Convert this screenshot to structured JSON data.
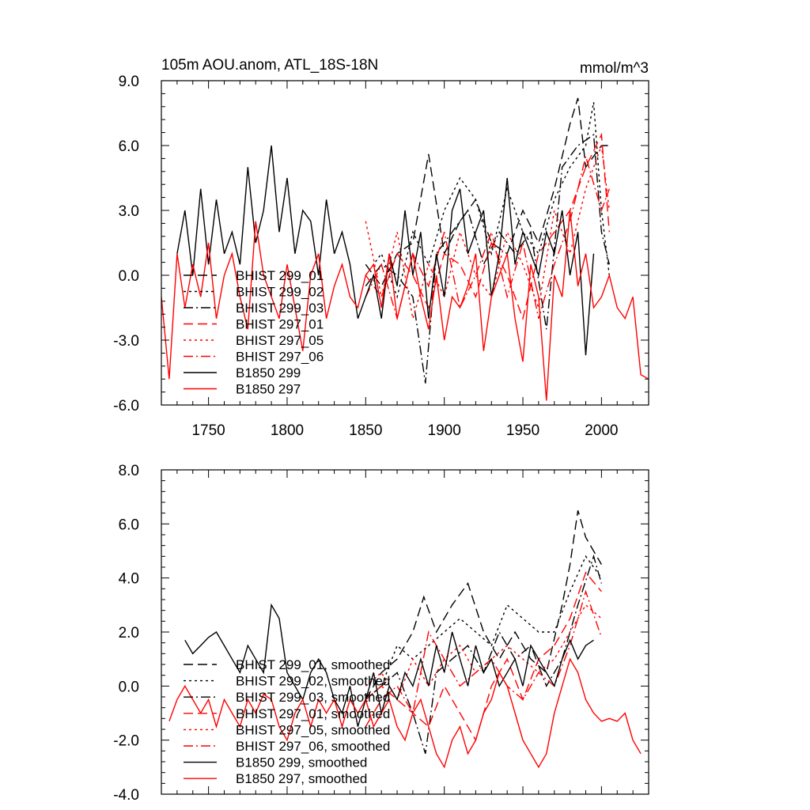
{
  "chart_data": [
    {
      "type": "line",
      "title": "105m AOU.anom, ATL_18S-18N",
      "units": "mmol/m^3",
      "xlim": [
        1720,
        2030
      ],
      "ylim": [
        -6,
        9
      ],
      "xticks": [
        1750,
        1800,
        1850,
        1900,
        1950,
        2000
      ],
      "yticks": [
        -6.0,
        -3.0,
        0.0,
        3.0,
        6.0,
        9.0
      ],
      "ytick_labels": [
        "-6.0",
        "-3.0",
        "0.0",
        "3.0",
        "6.0",
        "9.0"
      ],
      "legend_position": "left",
      "series": [
        {
          "name": "BHIST 299_01",
          "color": "#000000",
          "dash": "12,6",
          "x": [
            1850,
            1860,
            1870,
            1880,
            1890,
            1900,
            1910,
            1920,
            1930,
            1940,
            1950,
            1960,
            1970,
            1980,
            1985,
            1990,
            2000,
            2005
          ],
          "values": [
            0.5,
            -0.5,
            1.0,
            1.5,
            5.6,
            1.0,
            2.5,
            3.5,
            1.5,
            1.0,
            3.0,
            1.5,
            4.0,
            7.0,
            8.2,
            5.0,
            6.0,
            6.0
          ]
        },
        {
          "name": "BHIST 299_02",
          "color": "#000000",
          "dash": "3,4",
          "x": [
            1850,
            1860,
            1870,
            1880,
            1890,
            1900,
            1910,
            1920,
            1930,
            1940,
            1950,
            1960,
            1970,
            1980,
            1990,
            1995,
            2000,
            2005
          ],
          "values": [
            0.0,
            1.0,
            -1.0,
            2.0,
            0.5,
            3.0,
            4.5,
            3.5,
            1.0,
            4.0,
            2.0,
            1.0,
            3.5,
            5.0,
            6.0,
            8.0,
            3.0,
            0.0
          ]
        },
        {
          "name": "BHIST 299_03",
          "color": "#000000",
          "dash": "12,4,2,4",
          "x": [
            1850,
            1860,
            1870,
            1880,
            1888,
            1895,
            1905,
            1915,
            1925,
            1935,
            1945,
            1955,
            1965,
            1975,
            1985,
            1995,
            2000,
            2005
          ],
          "values": [
            -0.5,
            0.5,
            0.0,
            -1.0,
            -5.0,
            1.0,
            2.0,
            3.0,
            0.5,
            2.0,
            1.0,
            2.0,
            -2.5,
            5.0,
            6.0,
            6.5,
            2.0,
            0.5
          ]
        },
        {
          "name": "BHIST 297_01",
          "color": "#ff0000",
          "dash": "12,6",
          "x": [
            1850,
            1860,
            1870,
            1880,
            1890,
            1900,
            1910,
            1920,
            1930,
            1940,
            1950,
            1960,
            1970,
            1980,
            1990,
            2000,
            2005
          ],
          "values": [
            0.0,
            -1.0,
            1.0,
            0.0,
            -1.5,
            1.0,
            0.5,
            -1.0,
            1.5,
            0.0,
            -2.0,
            1.0,
            2.0,
            3.0,
            5.0,
            6.5,
            2.0
          ]
        },
        {
          "name": "BHIST 297_05",
          "color": "#ff0000",
          "dash": "3,4",
          "x": [
            1850,
            1860,
            1870,
            1880,
            1890,
            1900,
            1910,
            1920,
            1930,
            1940,
            1950,
            1960,
            1970,
            1980,
            1990,
            2000,
            2005
          ],
          "values": [
            2.5,
            -1.0,
            2.0,
            -2.0,
            0.5,
            -1.0,
            2.0,
            0.0,
            -1.0,
            2.0,
            0.5,
            -1.5,
            3.0,
            1.0,
            4.0,
            6.0,
            3.0
          ]
        },
        {
          "name": "BHIST 297_06",
          "color": "#ff0000",
          "dash": "12,4,2,4",
          "x": [
            1850,
            1860,
            1870,
            1880,
            1890,
            1900,
            1910,
            1920,
            1930,
            1940,
            1950,
            1960,
            1970,
            1980,
            1990,
            2000,
            2005
          ],
          "values": [
            -1.0,
            0.5,
            -2.0,
            1.0,
            -0.5,
            2.0,
            -1.5,
            0.0,
            2.0,
            -1.0,
            1.5,
            -2.0,
            0.5,
            2.5,
            5.5,
            3.0,
            4.0
          ]
        },
        {
          "name": "B1850 299",
          "color": "#000000",
          "dash": "",
          "x": [
            1730,
            1735,
            1740,
            1745,
            1750,
            1755,
            1760,
            1765,
            1770,
            1775,
            1780,
            1785,
            1790,
            1795,
            1800,
            1805,
            1810,
            1815,
            1820,
            1825,
            1830,
            1835,
            1840,
            1845,
            1850,
            1855,
            1860,
            1865,
            1870,
            1875,
            1880,
            1885,
            1890,
            1895,
            1900,
            1905,
            1910,
            1915,
            1920,
            1925,
            1930,
            1935,
            1940,
            1945,
            1950,
            1955,
            1960,
            1965,
            1970,
            1975,
            1980,
            1985,
            1990,
            1995
          ],
          "values": [
            1.0,
            3.0,
            0.0,
            4.0,
            0.5,
            3.5,
            1.0,
            2.0,
            0.5,
            5.0,
            1.5,
            3.0,
            6.0,
            2.0,
            4.5,
            1.0,
            3.0,
            2.5,
            0.0,
            3.5,
            1.0,
            2.0,
            0.5,
            -2.0,
            -1.0,
            0.0,
            -2.0,
            1.0,
            -0.5,
            3.0,
            0.0,
            2.0,
            -2.0,
            1.0,
            -1.0,
            3.0,
            4.0,
            1.0,
            2.0,
            3.0,
            -1.0,
            1.0,
            4.5,
            0.5,
            2.0,
            1.0,
            0.0,
            2.0,
            1.0,
            3.0,
            0.0,
            2.0,
            -3.7,
            1.0
          ]
        },
        {
          "name": "B1850 297",
          "color": "#ff0000",
          "dash": "",
          "x": [
            1720,
            1725,
            1730,
            1735,
            1740,
            1745,
            1750,
            1755,
            1760,
            1765,
            1770,
            1775,
            1780,
            1785,
            1790,
            1795,
            1800,
            1805,
            1810,
            1815,
            1820,
            1825,
            1830,
            1835,
            1840,
            1845,
            1850,
            1855,
            1860,
            1865,
            1870,
            1875,
            1880,
            1885,
            1890,
            1895,
            1900,
            1905,
            1910,
            1915,
            1920,
            1925,
            1930,
            1935,
            1940,
            1945,
            1950,
            1955,
            1960,
            1965,
            1970,
            1975,
            1980,
            1985,
            1990,
            1995,
            2000,
            2005,
            2010,
            2015,
            2020,
            2025,
            2030
          ],
          "values": [
            -1.0,
            -4.8,
            1.0,
            -1.5,
            0.5,
            -1.0,
            1.5,
            -2.0,
            0.0,
            1.0,
            -1.0,
            -2.5,
            2.5,
            0.0,
            -1.0,
            -2.0,
            0.5,
            -1.5,
            -3.5,
            0.0,
            1.0,
            -2.0,
            -0.5,
            0.5,
            -1.0,
            -1.5,
            0.0,
            0.5,
            -1.5,
            1.0,
            -2.0,
            -0.5,
            1.0,
            -1.0,
            -2.5,
            0.0,
            -3.0,
            -1.0,
            -1.5,
            -0.5,
            1.0,
            -3.5,
            -1.0,
            0.0,
            1.0,
            -2.0,
            -4.0,
            0.5,
            -1.0,
            -5.8,
            0.0,
            -1.0,
            3.0,
            -0.5,
            1.0,
            -1.5,
            -1.0,
            0.0,
            -1.5,
            -2.0,
            -1.0,
            -4.6,
            -4.8
          ]
        }
      ]
    },
    {
      "type": "line",
      "title": "",
      "xlim": [
        1720,
        2030
      ],
      "ylim": [
        -4,
        8
      ],
      "xticks": [
        1750,
        1800,
        1850,
        1900,
        1950,
        2000
      ],
      "yticks": [
        -4.0,
        -2.0,
        0.0,
        2.0,
        4.0,
        6.0,
        8.0
      ],
      "ytick_labels": [
        "-4.0",
        "-2.0",
        "0.0",
        "2.0",
        "4.0",
        "6.0",
        "8.0"
      ],
      "legend_position": "left",
      "series": [
        {
          "name": "BHIST 299_01, smoothed",
          "color": "#000000",
          "dash": "12,6",
          "x": [
            1850,
            1860,
            1870,
            1880,
            1887,
            1895,
            1905,
            1915,
            1925,
            1935,
            1945,
            1955,
            1965,
            1975,
            1980,
            1985,
            1990,
            2000
          ],
          "values": [
            -0.5,
            0.5,
            1.0,
            2.0,
            3.3,
            2.0,
            3.0,
            3.8,
            2.0,
            1.0,
            2.0,
            1.0,
            0.5,
            3.0,
            4.5,
            6.5,
            5.5,
            4.5
          ]
        },
        {
          "name": "BHIST 299_02, smoothed",
          "color": "#000000",
          "dash": "3,4",
          "x": [
            1850,
            1860,
            1870,
            1880,
            1890,
            1900,
            1910,
            1920,
            1930,
            1940,
            1950,
            1960,
            1970,
            1980,
            1990,
            2000
          ],
          "values": [
            -0.5,
            0.0,
            1.5,
            1.0,
            1.5,
            2.0,
            2.5,
            2.0,
            1.5,
            3.0,
            2.5,
            2.0,
            2.0,
            3.5,
            4.8,
            4.0
          ]
        },
        {
          "name": "BHIST 299_03, smoothed",
          "color": "#000000",
          "dash": "12,4,2,4",
          "x": [
            1850,
            1860,
            1870,
            1880,
            1888,
            1895,
            1905,
            1915,
            1925,
            1935,
            1945,
            1955,
            1965,
            1975,
            1985,
            1995,
            2000
          ],
          "values": [
            -0.5,
            0.0,
            0.5,
            -1.0,
            -2.5,
            0.5,
            1.0,
            1.5,
            0.5,
            2.0,
            1.0,
            1.5,
            0.0,
            1.0,
            3.0,
            4.8,
            3.8
          ]
        },
        {
          "name": "BHIST 297_01, smoothed",
          "color": "#ff0000",
          "dash": "12,6",
          "x": [
            1850,
            1860,
            1870,
            1880,
            1890,
            1900,
            1910,
            1920,
            1930,
            1940,
            1950,
            1960,
            1970,
            1980,
            1990,
            2000
          ],
          "values": [
            -0.5,
            0.0,
            -0.5,
            -1.0,
            -1.5,
            0.0,
            -1.0,
            -2.0,
            0.0,
            1.0,
            -0.5,
            1.0,
            1.5,
            2.5,
            4.2,
            3.5
          ]
        },
        {
          "name": "BHIST 297_05, smoothed",
          "color": "#ff0000",
          "dash": "3,4",
          "x": [
            1850,
            1860,
            1870,
            1880,
            1890,
            1900,
            1910,
            1920,
            1930,
            1940,
            1950,
            1960,
            1970,
            1980,
            1990,
            2000
          ],
          "values": [
            0.0,
            0.5,
            -0.5,
            1.0,
            0.0,
            1.0,
            1.5,
            0.5,
            1.0,
            1.5,
            1.0,
            0.5,
            1.0,
            2.0,
            3.0,
            2.5
          ]
        },
        {
          "name": "BHIST 297_06, smoothed",
          "color": "#ff0000",
          "dash": "12,4,2,4",
          "x": [
            1850,
            1860,
            1870,
            1880,
            1890,
            1900,
            1910,
            1920,
            1930,
            1940,
            1950,
            1960,
            1970,
            1980,
            1990,
            2000
          ],
          "values": [
            -1.5,
            -0.5,
            0.0,
            -1.0,
            2.0,
            1.0,
            0.0,
            0.5,
            1.0,
            0.0,
            -0.5,
            0.5,
            0.0,
            1.5,
            3.5,
            1.8
          ]
        },
        {
          "name": "B1850 299, smoothed",
          "color": "#000000",
          "dash": "",
          "x": [
            1735,
            1740,
            1745,
            1750,
            1755,
            1760,
            1765,
            1770,
            1775,
            1780,
            1785,
            1790,
            1795,
            1800,
            1805,
            1810,
            1815,
            1820,
            1825,
            1830,
            1835,
            1840,
            1845,
            1850,
            1855,
            1860,
            1865,
            1870,
            1875,
            1880,
            1885,
            1890,
            1895,
            1900,
            1905,
            1910,
            1915,
            1920,
            1925,
            1930,
            1935,
            1940,
            1945,
            1950,
            1955,
            1960,
            1965,
            1970,
            1975,
            1980,
            1985,
            1990,
            1995
          ],
          "values": [
            1.7,
            1.2,
            1.5,
            1.8,
            2.0,
            1.5,
            1.0,
            0.5,
            1.5,
            1.0,
            0.5,
            3.0,
            2.5,
            0.5,
            0.0,
            -0.5,
            0.5,
            1.0,
            0.5,
            -0.5,
            -1.0,
            0.0,
            -1.5,
            -0.5,
            0.5,
            -1.0,
            0.0,
            -0.5,
            0.5,
            0.0,
            1.0,
            0.0,
            1.5,
            0.5,
            2.0,
            1.0,
            0.0,
            1.5,
            0.5,
            1.0,
            0.0,
            0.5,
            1.0,
            0.0,
            1.5,
            1.0,
            0.5,
            0.0,
            1.0,
            1.7,
            1.0,
            1.5,
            1.7
          ]
        },
        {
          "name": "B1850 297, smoothed",
          "color": "#ff0000",
          "dash": "",
          "x": [
            1725,
            1730,
            1735,
            1740,
            1745,
            1750,
            1755,
            1760,
            1765,
            1770,
            1775,
            1780,
            1785,
            1790,
            1795,
            1800,
            1805,
            1810,
            1815,
            1820,
            1825,
            1830,
            1835,
            1840,
            1845,
            1850,
            1855,
            1860,
            1865,
            1870,
            1875,
            1880,
            1885,
            1890,
            1895,
            1900,
            1905,
            1910,
            1915,
            1920,
            1925,
            1930,
            1935,
            1940,
            1945,
            1950,
            1955,
            1960,
            1965,
            1970,
            1975,
            1980,
            1985,
            1990,
            1995,
            2000,
            2005,
            2010,
            2015,
            2020,
            2025
          ],
          "values": [
            -1.3,
            -0.5,
            0.0,
            -0.5,
            -1.0,
            -0.5,
            -1.5,
            -0.5,
            -1.0,
            -1.5,
            -0.5,
            -1.0,
            -0.3,
            -0.5,
            -1.5,
            -2.0,
            -1.0,
            -0.5,
            -1.5,
            -0.5,
            -1.0,
            -0.5,
            -1.5,
            -0.5,
            -1.0,
            -0.5,
            -1.5,
            -1.0,
            -0.5,
            -1.5,
            -2.0,
            -1.0,
            -0.5,
            -1.5,
            -2.5,
            -3.0,
            -2.0,
            -1.5,
            -2.5,
            -2.0,
            -1.0,
            -0.5,
            0.5,
            0.0,
            -1.0,
            -2.0,
            -2.5,
            -3.0,
            -2.5,
            -1.0,
            0.0,
            1.0,
            0.5,
            -0.5,
            -1.0,
            -1.3,
            -1.2,
            -1.3,
            -1.0,
            -2.0,
            -2.5
          ]
        }
      ]
    }
  ]
}
